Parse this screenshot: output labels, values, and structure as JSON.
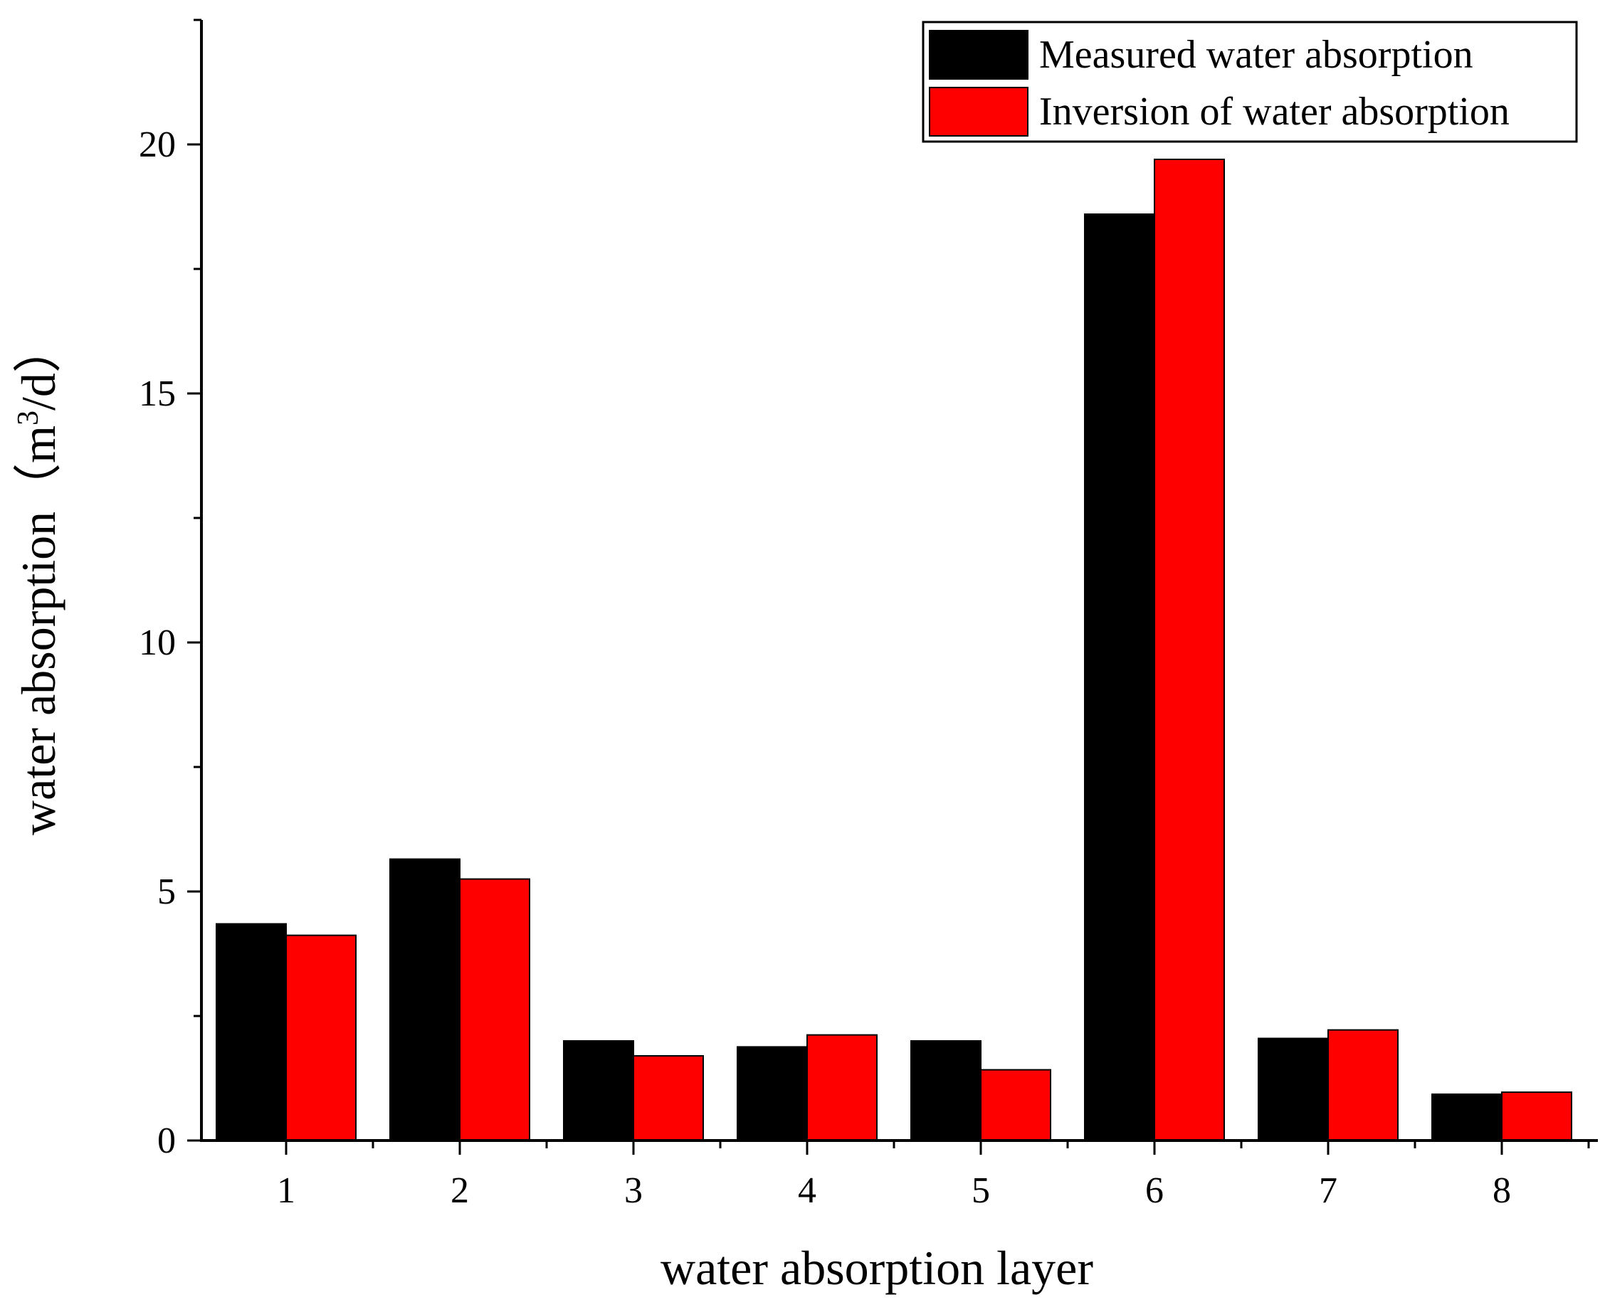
{
  "chart_data": {
    "type": "bar",
    "title": "",
    "xlabel": "water absorption layer",
    "ylabel": {
      "main": "water absorption（m",
      "superscript": "3",
      "tail": "/d）"
    },
    "categories": [
      "1",
      "2",
      "3",
      "4",
      "5",
      "6",
      "7",
      "8"
    ],
    "series": [
      {
        "name": "Measured water absorption",
        "color": "#000000",
        "values": [
          4.35,
          5.65,
          2.0,
          1.88,
          2.0,
          18.6,
          2.05,
          0.93
        ]
      },
      {
        "name": "Inversion of water absorption",
        "color": "#ff0000",
        "values": [
          4.12,
          5.25,
          1.7,
          2.12,
          1.42,
          19.7,
          2.22,
          0.97
        ]
      }
    ],
    "ylim": [
      0,
      22.5
    ],
    "yticks": [
      "0",
      "5",
      "10",
      "15",
      "20"
    ],
    "legend_position": "top-right",
    "grid": false
  }
}
